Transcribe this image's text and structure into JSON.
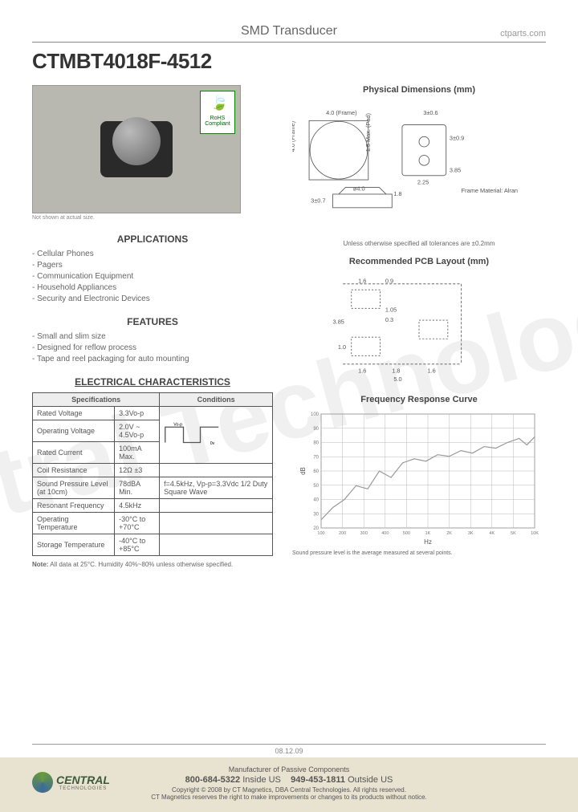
{
  "header": {
    "category": "SMD Transducer",
    "site": "ctparts.com"
  },
  "part_number": "CTMBT4018F-4512",
  "photo": {
    "note": "Not shown at actual size.",
    "rohs_label": "RoHS Compliant"
  },
  "applications": {
    "title": "APPLICATIONS",
    "items": [
      "Cellular Phones",
      "Pagers",
      "Communication Equipment",
      "Household Appliances",
      "Security and Electronic Devices"
    ]
  },
  "features": {
    "title": "FEATURES",
    "items": [
      "Small and slim size",
      "Designed for reflow process",
      "Tape and reel packaging for auto mounting"
    ]
  },
  "electrical": {
    "title": "ELECTRICAL CHARACTERISTICS",
    "headers": [
      "Specifications",
      "Conditions"
    ],
    "rows": [
      {
        "spec": "Rated Voltage",
        "val": "3.3Vo-p",
        "cond": ""
      },
      {
        "spec": "Operating Voltage",
        "val": "2.0V ~ 4.5Vo-p",
        "cond": "wave"
      },
      {
        "spec": "Rated Current",
        "val": "100mA Max.",
        "cond": ""
      },
      {
        "spec": "Coil Resistance",
        "val": "12Ω ±3",
        "cond": ""
      },
      {
        "spec": "Sound Pressure Level (at 10cm)",
        "val": "78dBA Min.",
        "cond": "f=4.5kHz, Vp-p=3.3Vdc 1/2 Duty Square Wave"
      },
      {
        "spec": "Resonant Frequency",
        "val": "4.5kHz",
        "cond": ""
      },
      {
        "spec": "Operating Temperature",
        "val": "-30°C to +70°C",
        "cond": ""
      },
      {
        "spec": "Storage Temperature",
        "val": "-40°C to +85°C",
        "cond": ""
      }
    ],
    "note_label": "Note:",
    "note": " All data at 25°C. Humidity 40%~80% unless otherwise specified.",
    "wave_labels": {
      "high": "Vo-p",
      "low": "0v"
    }
  },
  "physical": {
    "title": "Physical Dimensions (mm)",
    "frame_w": "4.0 (Frame)",
    "frame_h": "4.0 (Frame)",
    "pad_max": "1.5 Max. (Pad)",
    "side_depth": "3±0.6",
    "side_h": "3±0.9",
    "side_a": "2.25",
    "side_b": "3.85",
    "dia": "ø4.0",
    "prof_h": "3±0.7",
    "prof_top": "1.8",
    "frame_material_label": "Frame Material: Alran",
    "tolerance": "Unless otherwise specified all tolerances are ±0.2mm"
  },
  "pcb": {
    "title": "Recommended PCB Layout (mm)",
    "d1": "1.6",
    "d2": "0.9",
    "d3": "3.85",
    "d4": "1.05",
    "d5": "0.3",
    "d6": "1.0",
    "d7": "1.6",
    "d8": "1.8",
    "d9": "1.6",
    "d10": "5.0"
  },
  "freq": {
    "title": "Frequency Response Curve",
    "y_label": "dB",
    "x_label": "Hz",
    "y_ticks": [
      100,
      90,
      80,
      70,
      60,
      50,
      40,
      30,
      20
    ],
    "x_ticks": [
      "100",
      "200",
      "300",
      "400",
      "500",
      "1K",
      "2K",
      "3K",
      "4K",
      "5K",
      "10K"
    ],
    "curve": [
      [
        0,
        130
      ],
      [
        15,
        115
      ],
      [
        30,
        105
      ],
      [
        45,
        88
      ],
      [
        60,
        92
      ],
      [
        75,
        70
      ],
      [
        90,
        78
      ],
      [
        105,
        60
      ],
      [
        120,
        55
      ],
      [
        135,
        58
      ],
      [
        150,
        50
      ],
      [
        165,
        52
      ],
      [
        180,
        45
      ],
      [
        195,
        48
      ],
      [
        210,
        40
      ],
      [
        225,
        42
      ],
      [
        240,
        35
      ],
      [
        255,
        30
      ],
      [
        265,
        38
      ],
      [
        275,
        28
      ]
    ],
    "colors": {
      "grid": "#b8b8b8",
      "curve": "#999999"
    },
    "note": "Sound pressure level is the average measured at several points."
  },
  "footer": {
    "date": "08.12.09",
    "tagline": "Manufacturer of Passive Components",
    "phone_us": "800-684-5322",
    "phone_us_label": "Inside US",
    "phone_intl": "949-453-1811",
    "phone_intl_label": "Outside US",
    "copyright": "Copyright © 2008 by CT Magnetics, DBA Central Technologies. All rights reserved.",
    "disclaimer": "CT Magnetics reserves the right to make improvements or changes to its products without notice.",
    "logo_name": "CENTRAL",
    "logo_sub": "TECHNOLOGIES"
  }
}
